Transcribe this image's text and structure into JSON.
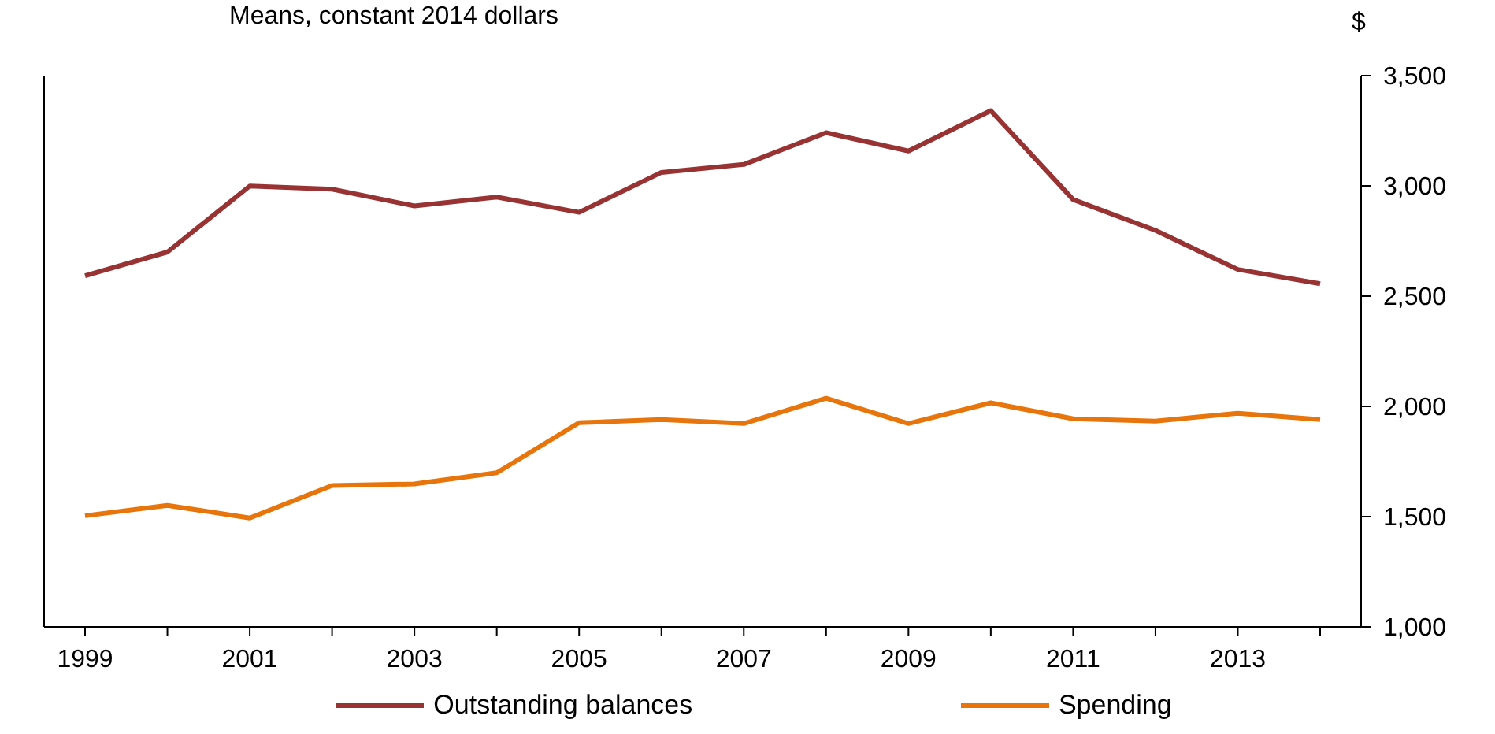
{
  "chart_data": {
    "type": "line",
    "subtitle": "Means, constant 2014 dollars",
    "ylabel": "$",
    "categories": [
      "1999",
      null,
      "2001",
      null,
      "2003",
      null,
      "2005",
      null,
      "2007",
      null,
      "2009",
      null,
      "2011",
      null,
      "2013",
      null
    ],
    "series": [
      {
        "name": "Outstanding balances",
        "color": "#993333",
        "values": [
          2592,
          2700,
          2999,
          2985,
          2909,
          2949,
          2880,
          3061,
          3097,
          3241,
          3158,
          3341,
          2938,
          2798,
          2621,
          2556
        ]
      },
      {
        "name": "Spending",
        "color": "#e8740c",
        "values": [
          1504,
          1551,
          1494,
          1641,
          1648,
          1699,
          1926,
          1940,
          1922,
          2037,
          1922,
          2016,
          1944,
          1933,
          1969,
          1940
        ]
      }
    ],
    "ylim": [
      1000,
      3500
    ],
    "yticks": [
      {
        "value": 1000,
        "label": "1,000"
      },
      {
        "value": 1500,
        "label": "1,500"
      },
      {
        "value": 2000,
        "label": "2,000"
      },
      {
        "value": 2500,
        "label": "2,500"
      },
      {
        "value": 3000,
        "label": "3,000"
      },
      {
        "value": 3500,
        "label": "3,500"
      }
    ],
    "legend": "bottom",
    "marker": "none",
    "line_style": "solid"
  }
}
